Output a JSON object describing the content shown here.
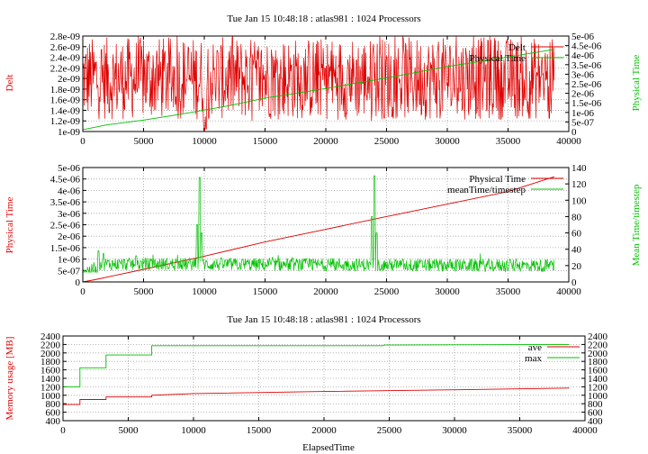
{
  "chart_data": [
    {
      "type": "line",
      "title": "Tue Jan 15 10:48:18 : atlas981 : 1024 Processors",
      "xlabel": "",
      "ylabel": "Delt",
      "y2label": "Physical Time",
      "xlim": [
        0,
        40000
      ],
      "ylim": [
        1e-09,
        2.8e-09
      ],
      "y2lim": [
        0,
        5e-06
      ],
      "xticks": [
        "0",
        "5000",
        "10000",
        "15000",
        "20000",
        "25000",
        "30000",
        "35000",
        "40000"
      ],
      "yticks": [
        "1e-09",
        "1.2e-09",
        "1.4e-09",
        "1.6e-09",
        "1.8e-09",
        "2e-09",
        "2.2e-09",
        "2.4e-09",
        "2.6e-09",
        "2.8e-09"
      ],
      "y2ticks": [
        "0",
        "5e-07",
        "1e-06",
        "1.5e-06",
        "2e-06",
        "2.5e-06",
        "3e-06",
        "3.5e-06",
        "4e-06",
        "4.5e-06",
        "5e-06"
      ],
      "grid": true,
      "legend_position": "top-right",
      "series": [
        {
          "name": "Delt",
          "axis": "y",
          "color": "#e00000",
          "kind": "noise",
          "x_end": 38800,
          "base": [
            [
              0,
              2e-09
            ],
            [
              38800,
              2e-09
            ]
          ],
          "amp": 7.8e-10,
          "low": 1.2e-09,
          "high": 2.8e-09,
          "dips": [
            [
              10000,
              1.02e-09
            ],
            [
              10150,
              1.05e-09
            ],
            [
              24800,
              1.25e-09
            ],
            [
              38400,
              1.25e-09
            ]
          ]
        },
        {
          "name": "Physical Time",
          "axis": "y2",
          "color": "#00c000",
          "kind": "line",
          "points": [
            [
              0,
              1e-07
            ],
            [
              2000,
              3.5e-07
            ],
            [
              5000,
              6e-07
            ],
            [
              8000,
              9e-07
            ],
            [
              9800,
              1.1e-06
            ],
            [
              12000,
              1.35e-06
            ],
            [
              15000,
              1.75e-06
            ],
            [
              20000,
              2.25e-06
            ],
            [
              24000,
              2.7e-06
            ],
            [
              25000,
              2.8e-06
            ],
            [
              30000,
              3.4e-06
            ],
            [
              35000,
              3.9e-06
            ],
            [
              38800,
              4.3e-06
            ]
          ]
        }
      ]
    },
    {
      "type": "line",
      "title": "",
      "xlabel": "",
      "ylabel": "Physical Time",
      "y2label": "Mean Time/timestep",
      "xlim": [
        0,
        40000
      ],
      "ylim": [
        0,
        5e-06
      ],
      "y2lim": [
        0,
        140
      ],
      "xticks": [
        "0",
        "5000",
        "10000",
        "15000",
        "20000",
        "25000",
        "30000",
        "35000",
        "40000"
      ],
      "yticks": [
        "0",
        "5e-07",
        "1e-06",
        "1.5e-06",
        "2e-06",
        "2.5e-06",
        "3e-06",
        "3.5e-06",
        "4e-06",
        "4.5e-06",
        "5e-06"
      ],
      "y2ticks": [
        "0",
        "20",
        "40",
        "60",
        "80",
        "100",
        "120",
        "140"
      ],
      "grid": true,
      "legend_position": "top-right",
      "series": [
        {
          "name": "Physical Time",
          "axis": "y",
          "color": "#e00000",
          "kind": "line",
          "points": [
            [
              0,
              0.0
            ],
            [
              1000,
              1e-07
            ],
            [
              5000,
              5.5e-07
            ],
            [
              9800,
              1.1e-06
            ],
            [
              15000,
              1.75e-06
            ],
            [
              20000,
              2.3e-06
            ],
            [
              24000,
              2.75e-06
            ],
            [
              30000,
              3.4e-06
            ],
            [
              35000,
              3.95e-06
            ],
            [
              38800,
              4.6e-06
            ]
          ]
        },
        {
          "name": "meanTime/timestep",
          "axis": "y2",
          "color": "#00c000",
          "kind": "noise",
          "x_end": 38800,
          "base": [
            [
              0,
              14
            ],
            [
              1200,
              14
            ],
            [
              1300,
              22
            ],
            [
              38800,
              20
            ]
          ],
          "amp": 8,
          "low": 12,
          "high": 42,
          "dips": [],
          "spikes": [
            [
              1300,
              38
            ],
            [
              1700,
              35
            ],
            [
              4400,
              32
            ],
            [
              9400,
              70
            ],
            [
              9600,
              128
            ],
            [
              9800,
              60
            ],
            [
              23800,
              80
            ],
            [
              24000,
              130
            ],
            [
              24200,
              60
            ]
          ]
        }
      ]
    },
    {
      "type": "line",
      "title": "Tue Jan 15 10:48:18 : atlas981 : 1024 Processors",
      "xlabel": "ElapsedTime",
      "ylabel": "Memory usage [MB]",
      "y2label": "",
      "xlim": [
        0,
        40000
      ],
      "ylim": [
        400,
        2400
      ],
      "y2lim": [
        400,
        2400
      ],
      "xticks": [
        "0",
        "5000",
        "10000",
        "15000",
        "20000",
        "25000",
        "30000",
        "35000",
        "40000"
      ],
      "yticks": [
        "400",
        "600",
        "800",
        "1000",
        "1200",
        "1400",
        "1600",
        "1800",
        "2000",
        "2200",
        "2400"
      ],
      "y2ticks": [
        "400",
        "600",
        "800",
        "1000",
        "1200",
        "1400",
        "1600",
        "1800",
        "2000",
        "2200",
        "2400"
      ],
      "grid": true,
      "legend_position": "top-right",
      "series": [
        {
          "name": "ave",
          "axis": "y",
          "color": "#e00000",
          "kind": "line",
          "points": [
            [
              0,
              780
            ],
            [
              1300,
              780
            ],
            [
              1300,
              900
            ],
            [
              3300,
              900
            ],
            [
              3300,
              960
            ],
            [
              6800,
              960
            ],
            [
              6800,
              1000
            ],
            [
              10000,
              1040
            ],
            [
              20000,
              1090
            ],
            [
              30000,
              1130
            ],
            [
              38800,
              1170
            ]
          ]
        },
        {
          "name": "max",
          "axis": "y",
          "color": "#00c000",
          "kind": "line",
          "points": [
            [
              0,
              1200
            ],
            [
              1300,
              1200
            ],
            [
              1300,
              1650
            ],
            [
              3300,
              1650
            ],
            [
              3300,
              1950
            ],
            [
              6800,
              1950
            ],
            [
              6800,
              2170
            ],
            [
              24500,
              2170
            ],
            [
              24600,
              2185
            ],
            [
              38800,
              2200
            ]
          ]
        }
      ]
    }
  ]
}
